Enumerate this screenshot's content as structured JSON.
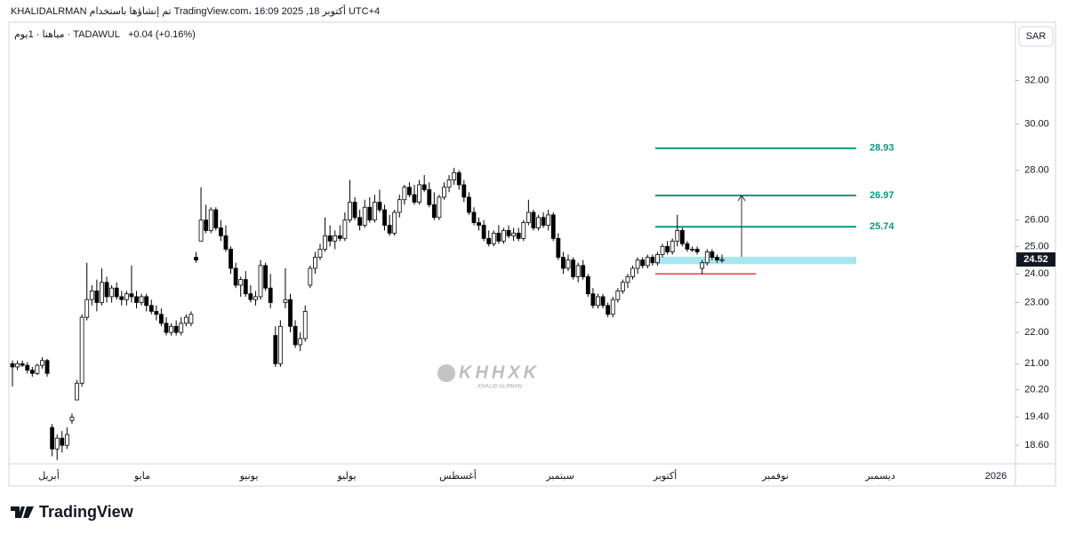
{
  "chart_data": {
    "type": "candlestick",
    "header": "KHALIDALRMAN تم إنشاؤها باستخدام TradingView.com، 16:09 2025 ,18 أكتوبر UTC+4",
    "legend_title": "مياهنا · 1يوم · TADAWUL",
    "change": "+0.04 (+0.16%)",
    "currency": "SAR",
    "log_scale": true,
    "ylim": [
      18.12,
      34.8
    ],
    "yticks": [
      {
        "value": 18.6,
        "label": "18.60"
      },
      {
        "value": 19.4,
        "label": "19.40"
      },
      {
        "value": 20.2,
        "label": "20.20"
      },
      {
        "value": 21,
        "label": "21.00"
      },
      {
        "value": 22,
        "label": "22.00"
      },
      {
        "value": 23,
        "label": "23.00"
      },
      {
        "value": 24,
        "label": "24.00"
      },
      {
        "value": 25,
        "label": "25.00"
      },
      {
        "value": 26,
        "label": "26.00"
      },
      {
        "value": 28,
        "label": "28.00"
      },
      {
        "value": 30,
        "label": "30.00"
      },
      {
        "value": 32,
        "label": "32.00"
      }
    ],
    "x_labels": [
      "أبريل",
      "مايو",
      "يونيو",
      "يوليو",
      "أغسطس",
      "سبتمبر",
      "أكتوبر",
      "نوفمبر",
      "ديسمبر",
      "2026"
    ],
    "up_color": "#ffffff",
    "down_color": "#000000",
    "ohlc": [
      [
        21.0,
        21.1,
        20.3,
        20.9
      ],
      [
        20.9,
        21.1,
        20.8,
        21.0
      ],
      [
        21.0,
        21.1,
        20.9,
        20.95
      ],
      [
        20.95,
        21.05,
        20.7,
        20.8
      ],
      [
        20.8,
        20.9,
        20.6,
        20.7
      ],
      [
        20.7,
        21.0,
        20.65,
        20.95
      ],
      [
        20.95,
        21.2,
        20.85,
        21.1
      ],
      [
        21.1,
        21.15,
        20.6,
        20.7
      ],
      [
        19.1,
        19.2,
        18.3,
        18.5
      ],
      [
        18.5,
        18.9,
        18.2,
        18.8
      ],
      [
        18.8,
        19.0,
        18.4,
        18.6
      ],
      [
        18.6,
        19.1,
        18.5,
        18.9
      ],
      [
        19.3,
        19.5,
        19.2,
        19.4
      ],
      [
        19.9,
        20.5,
        19.9,
        20.4
      ],
      [
        20.4,
        22.6,
        20.3,
        22.5
      ],
      [
        22.5,
        24.4,
        22.4,
        23.1
      ],
      [
        23.1,
        23.6,
        22.9,
        23.4
      ],
      [
        23.4,
        23.8,
        22.7,
        23.0
      ],
      [
        23.0,
        24.2,
        22.9,
        23.7
      ],
      [
        23.7,
        23.9,
        23.0,
        23.2
      ],
      [
        23.2,
        23.6,
        23.0,
        23.5
      ],
      [
        23.5,
        23.7,
        23.1,
        23.2
      ],
      [
        23.2,
        23.4,
        22.9,
        23.1
      ],
      [
        23.1,
        23.4,
        22.9,
        23.3
      ],
      [
        23.3,
        24.3,
        23.0,
        23.2
      ],
      [
        23.2,
        23.4,
        22.8,
        23.0
      ],
      [
        23.0,
        23.3,
        22.9,
        23.2
      ],
      [
        23.2,
        23.3,
        22.7,
        22.9
      ],
      [
        22.9,
        23.1,
        22.6,
        22.7
      ],
      [
        22.7,
        22.9,
        22.4,
        22.6
      ],
      [
        22.6,
        22.8,
        22.2,
        22.3
      ],
      [
        22.3,
        22.5,
        21.9,
        22.0
      ],
      [
        22.0,
        22.3,
        21.9,
        22.2
      ],
      [
        22.2,
        22.4,
        21.9,
        22.0
      ],
      [
        22.0,
        22.5,
        21.9,
        22.3
      ],
      [
        22.3,
        22.6,
        22.2,
        22.5
      ],
      [
        22.3,
        22.7,
        22.2,
        22.6
      ],
      [
        24.6,
        24.8,
        24.4,
        24.5
      ],
      [
        25.2,
        27.3,
        25.2,
        26.0
      ],
      [
        26.0,
        26.6,
        25.5,
        25.6
      ],
      [
        25.6,
        26.5,
        25.5,
        26.4
      ],
      [
        26.4,
        26.5,
        25.6,
        25.7
      ],
      [
        25.7,
        26.0,
        25.2,
        25.4
      ],
      [
        25.4,
        25.8,
        24.8,
        24.9
      ],
      [
        24.9,
        25.0,
        24.0,
        24.2
      ],
      [
        24.2,
        24.4,
        23.5,
        23.6
      ],
      [
        23.6,
        23.9,
        23.2,
        23.8
      ],
      [
        23.8,
        24.1,
        23.2,
        23.3
      ],
      [
        23.3,
        23.6,
        23.0,
        23.1
      ],
      [
        23.1,
        23.4,
        22.9,
        23.2
      ],
      [
        23.2,
        24.5,
        23.1,
        24.3
      ],
      [
        24.3,
        24.4,
        23.4,
        23.5
      ],
      [
        23.5,
        24.0,
        22.8,
        23.0
      ],
      [
        21.9,
        22.2,
        20.9,
        21.0
      ],
      [
        21.0,
        22.4,
        20.9,
        22.2
      ],
      [
        23.0,
        24.2,
        22.8,
        23.1
      ],
      [
        23.1,
        23.3,
        22.0,
        22.2
      ],
      [
        22.2,
        22.4,
        21.5,
        21.6
      ],
      [
        21.6,
        22.0,
        21.4,
        21.8
      ],
      [
        21.8,
        22.9,
        21.7,
        22.7
      ],
      [
        23.6,
        24.3,
        23.5,
        24.2
      ],
      [
        24.2,
        24.8,
        24.0,
        24.6
      ],
      [
        24.6,
        25.1,
        24.5,
        24.9
      ],
      [
        24.9,
        26.1,
        24.8,
        25.4
      ],
      [
        25.4,
        25.8,
        25.0,
        25.2
      ],
      [
        25.2,
        25.6,
        24.9,
        25.4
      ],
      [
        25.4,
        25.8,
        25.2,
        25.3
      ],
      [
        25.3,
        26.3,
        25.2,
        26.0
      ],
      [
        26.0,
        27.6,
        25.9,
        26.7
      ],
      [
        26.7,
        26.9,
        26.0,
        26.1
      ],
      [
        26.1,
        26.4,
        25.6,
        25.8
      ],
      [
        25.8,
        26.8,
        25.7,
        26.5
      ],
      [
        26.5,
        26.9,
        25.9,
        26.0
      ],
      [
        26.0,
        27.0,
        25.9,
        26.7
      ],
      [
        26.7,
        27.2,
        26.3,
        26.4
      ],
      [
        26.4,
        26.6,
        25.6,
        25.8
      ],
      [
        25.8,
        26.2,
        25.4,
        25.5
      ],
      [
        25.5,
        26.4,
        25.4,
        26.3
      ],
      [
        26.3,
        27.0,
        26.1,
        26.8
      ],
      [
        26.8,
        27.4,
        26.6,
        27.3
      ],
      [
        27.3,
        27.5,
        26.9,
        27.0
      ],
      [
        27.0,
        27.4,
        26.6,
        26.7
      ],
      [
        26.7,
        27.6,
        26.6,
        27.4
      ],
      [
        27.4,
        27.8,
        27.1,
        27.2
      ],
      [
        27.2,
        27.5,
        26.5,
        26.6
      ],
      [
        26.6,
        27.1,
        26.0,
        26.1
      ],
      [
        26.1,
        27.0,
        26.0,
        26.9
      ],
      [
        26.9,
        27.5,
        26.8,
        27.3
      ],
      [
        27.3,
        27.8,
        27.1,
        27.6
      ],
      [
        27.6,
        28.1,
        27.4,
        27.9
      ],
      [
        27.9,
        28.0,
        27.2,
        27.4
      ],
      [
        27.4,
        27.6,
        26.7,
        26.9
      ],
      [
        26.9,
        27.1,
        26.2,
        26.3
      ],
      [
        26.3,
        26.5,
        25.8,
        25.9
      ],
      [
        25.9,
        26.1,
        25.6,
        25.8
      ],
      [
        25.8,
        26.0,
        25.2,
        25.3
      ],
      [
        25.3,
        25.6,
        25.0,
        25.1
      ],
      [
        25.1,
        25.6,
        25.0,
        25.5
      ],
      [
        25.5,
        25.8,
        25.1,
        25.2
      ],
      [
        25.2,
        25.7,
        25.1,
        25.6
      ],
      [
        25.6,
        25.8,
        25.3,
        25.4
      ],
      [
        25.4,
        25.7,
        25.2,
        25.5
      ],
      [
        25.5,
        25.7,
        25.2,
        25.3
      ],
      [
        25.3,
        26.0,
        25.2,
        25.9
      ],
      [
        25.9,
        26.8,
        25.8,
        26.3
      ],
      [
        26.3,
        26.4,
        25.6,
        25.7
      ],
      [
        25.7,
        26.2,
        25.6,
        26.1
      ],
      [
        26.1,
        26.3,
        25.7,
        25.8
      ],
      [
        25.8,
        26.4,
        25.6,
        26.2
      ],
      [
        26.2,
        26.3,
        25.2,
        25.3
      ],
      [
        25.3,
        25.5,
        24.5,
        24.6
      ],
      [
        24.6,
        24.8,
        24.0,
        24.2
      ],
      [
        24.2,
        24.7,
        24.1,
        24.5
      ],
      [
        24.5,
        24.6,
        23.8,
        23.9
      ],
      [
        23.9,
        24.4,
        23.7,
        24.3
      ],
      [
        24.3,
        24.5,
        23.8,
        23.9
      ],
      [
        23.9,
        24.0,
        23.2,
        23.3
      ],
      [
        23.3,
        23.5,
        22.8,
        22.9
      ],
      [
        22.9,
        23.3,
        22.8,
        23.2
      ],
      [
        23.2,
        23.3,
        22.8,
        22.9
      ],
      [
        22.9,
        23.0,
        22.5,
        22.6
      ],
      [
        22.6,
        23.2,
        22.5,
        23.1
      ],
      [
        23.1,
        23.5,
        23.0,
        23.4
      ],
      [
        23.4,
        23.8,
        23.3,
        23.7
      ],
      [
        23.7,
        24.0,
        23.5,
        23.9
      ],
      [
        23.9,
        24.3,
        23.8,
        24.2
      ],
      [
        24.2,
        24.6,
        24.0,
        24.5
      ],
      [
        24.5,
        24.6,
        24.2,
        24.3
      ],
      [
        24.3,
        24.7,
        24.2,
        24.6
      ],
      [
        24.6,
        24.7,
        24.3,
        24.4
      ],
      [
        24.4,
        24.8,
        24.3,
        24.7
      ],
      [
        24.7,
        25.1,
        24.6,
        25.0
      ],
      [
        25.0,
        25.2,
        24.7,
        24.8
      ],
      [
        24.8,
        25.3,
        24.7,
        25.2
      ],
      [
        25.2,
        26.2,
        25.0,
        25.6
      ],
      [
        25.6,
        25.7,
        25.0,
        25.1
      ],
      [
        25.1,
        25.2,
        24.8,
        24.9
      ],
      [
        24.9,
        25.0,
        24.8,
        24.9
      ],
      [
        24.9,
        25.0,
        24.7,
        24.8
      ],
      [
        24.2,
        24.5,
        24.0,
        24.4
      ],
      [
        24.4,
        24.9,
        24.3,
        24.8
      ],
      [
        24.8,
        24.9,
        24.5,
        24.6
      ],
      [
        24.6,
        24.7,
        24.4,
        24.5
      ],
      [
        24.48,
        24.7,
        24.4,
        24.52
      ]
    ],
    "target_levels": [
      28.93,
      26.97,
      25.74
    ],
    "target_color": "#089981",
    "stop_level": 24.0,
    "stop_color": "#f23645",
    "zone": [
      24.35,
      24.62
    ],
    "zone_color": "#a8e6ef",
    "last_price": 24.52,
    "watermark": "KHHXK",
    "watermark_sub": "KHALID ALRMAN",
    "brand": "TradingView"
  }
}
